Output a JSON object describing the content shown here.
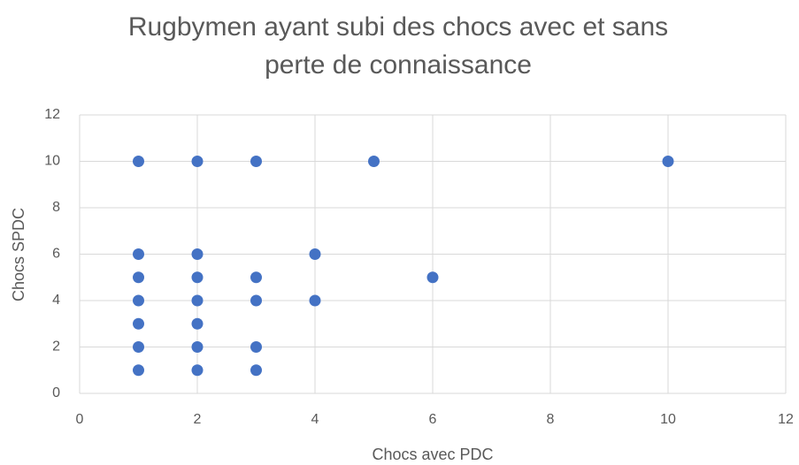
{
  "chart_data": {
    "type": "scatter",
    "title": [
      "Rugbymen ayant subi des chocs avec et sans",
      "perte de connaissance"
    ],
    "xlabel": "Chocs avec PDC",
    "ylabel": "Chocs SPDC",
    "color": "#4472c4",
    "grid": true,
    "x": [
      1,
      1,
      1,
      1,
      1,
      1,
      1,
      2,
      2,
      2,
      2,
      2,
      2,
      2,
      3,
      3,
      3,
      3,
      3,
      4,
      4,
      5,
      6,
      10
    ],
    "values": [
      10,
      6,
      5,
      4,
      3,
      2,
      1,
      10,
      6,
      5,
      4,
      3,
      2,
      1,
      10,
      5,
      4,
      2,
      1,
      6,
      4,
      10,
      5,
      10
    ],
    "xlim": [
      0,
      12
    ],
    "xticks": [
      0,
      2,
      4,
      6,
      8,
      10,
      12
    ],
    "ylim": [
      0,
      12
    ],
    "yticks": [
      0,
      2,
      4,
      6,
      8,
      10,
      12
    ]
  }
}
